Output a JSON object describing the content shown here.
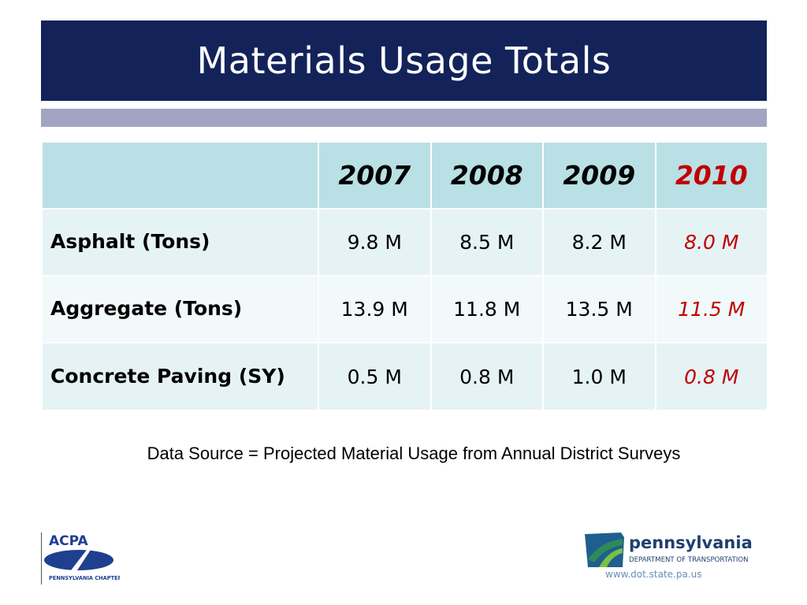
{
  "title": "Materials Usage Totals",
  "table": {
    "header": {
      "corner": "",
      "years": [
        "2007",
        "2008",
        "2009",
        "2010"
      ]
    },
    "rows": [
      {
        "label": "Asphalt (Tons)",
        "values": [
          "9.8 M",
          "8.5 M",
          "8.2 M",
          "8.0 M"
        ]
      },
      {
        "label": "Aggregate (Tons)",
        "values": [
          "13.9 M",
          "11.8 M",
          "13.5 M",
          "11.5 M"
        ]
      },
      {
        "label": "Concrete Paving (SY)",
        "values": [
          "0.5 M",
          "0.8 M",
          "1.0 M",
          "0.8 M"
        ]
      }
    ],
    "highlight_color": "#c00000"
  },
  "source_note": "Data Source = Projected Material Usage from  Annual District Surveys",
  "logos": {
    "acpa": {
      "name": "ACPA",
      "subtitle": "PENNSYLVANIA CHAPTER",
      "color": "#1f3f8f"
    },
    "penndot": {
      "name": "pennsylvania",
      "subtitle": "DEPARTMENT OF TRANSPORTATION",
      "url": "www.dot.state.pa.us",
      "color": "#1f3f6f",
      "accent": "#2e8b57"
    }
  },
  "colors": {
    "title_bg": "#13235a",
    "sub_bar": "#a3a4c1",
    "header_row": "#b9e0e5",
    "row_light": "#e5f3f5"
  }
}
